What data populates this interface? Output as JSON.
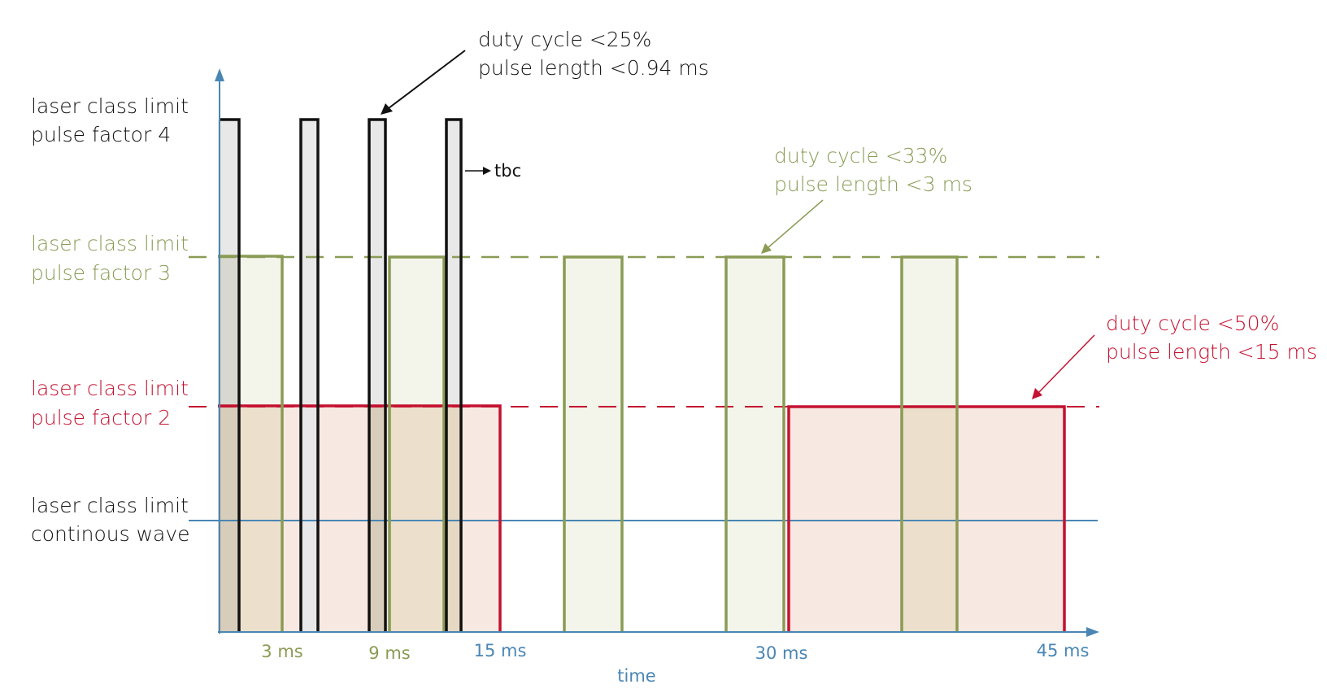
{
  "colors": {
    "black": "#111111",
    "green": "#8a9b55",
    "red": "#c41230",
    "blue": "#4a86b4",
    "gray_fill": "#e8e8e8",
    "green_fill": "#f3f4ea",
    "red_fill": "#f7e9e1",
    "green_red_fill": "#ece0cc",
    "dark_overlap_fill": "#d8cdbb"
  },
  "levels": {
    "pf4": {
      "line1": "laser class limit",
      "line2": "pulse factor 4"
    },
    "pf3": {
      "line1": "laser class limit",
      "line2": "pulse factor 3"
    },
    "pf2": {
      "line1": "laser class limit",
      "line2": "pulse factor 2"
    },
    "cw": {
      "line1": "laser class limit",
      "line2": "continous wave"
    }
  },
  "annotations": {
    "pf4": {
      "line1": "duty cycle <25%",
      "line2": "pulse length <0.94 ms"
    },
    "pf3": {
      "line1": "duty cycle <33%",
      "line2": "pulse length <3 ms"
    },
    "pf2": {
      "line1": "duty cycle <50%",
      "line2": "pulse length <15 ms"
    },
    "tbc": "tbc"
  },
  "axis": {
    "xlabel": "time",
    "ticks": [
      "3 ms",
      "9 ms",
      "15 ms",
      "30 ms",
      "45 ms"
    ]
  }
}
